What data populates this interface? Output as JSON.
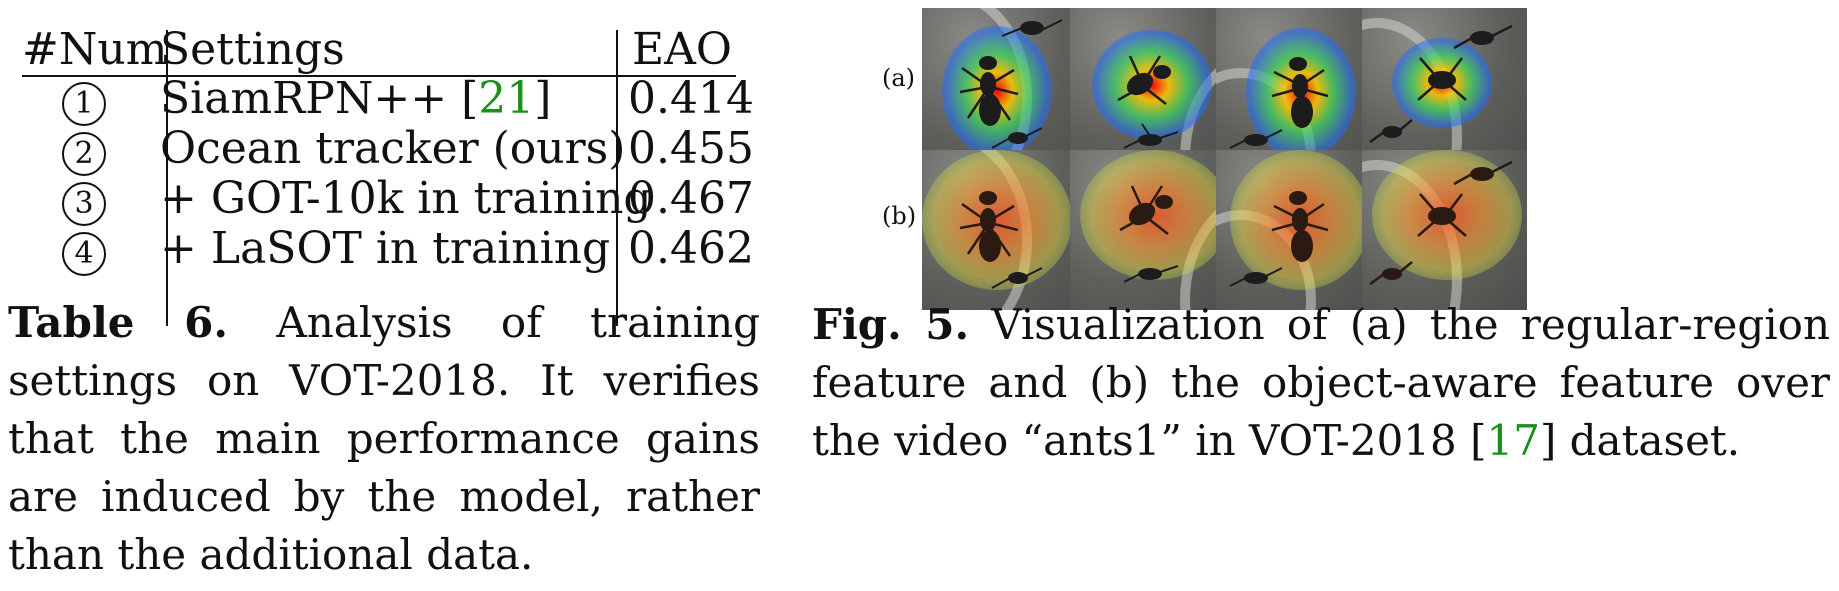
{
  "table": {
    "headers": [
      "#Num",
      "Settings",
      "EAO"
    ],
    "rows": [
      {
        "num": "1",
        "setting": "SiamRPN++ [",
        "ref": "21",
        "after": "]",
        "eao": "0.414"
      },
      {
        "num": "2",
        "setting": "Ocean tracker (ours)",
        "ref": "",
        "after": "",
        "eao": "0.455"
      },
      {
        "num": "3",
        "setting": "+ GOT-10k in training",
        "ref": "",
        "after": "",
        "eao": "0.467"
      },
      {
        "num": "4",
        "setting": "+ LaSOT in training",
        "ref": "",
        "after": "",
        "eao": "0.462"
      }
    ],
    "caption_label": "Table 6.",
    "caption_text": "Analysis of training settings on VOT-2018. It verifies that the main performance gains are induced by the model, rather than the additional data."
  },
  "figure": {
    "row_labels": [
      "(a)",
      "(b)"
    ],
    "caption_label": "Fig. 5.",
    "caption_text_1": "Visualization of (a) the regular-region feature and (b) the object-aware feature over the video “ants1” in VOT-2018 [",
    "caption_ref": "17",
    "caption_text_2": "] dataset."
  },
  "colors": {
    "reference_link": "#1a8f1a"
  }
}
